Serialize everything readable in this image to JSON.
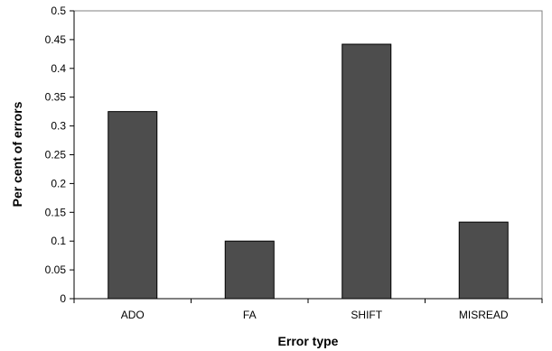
{
  "chart_data": {
    "type": "bar",
    "title": "",
    "xlabel": "Error type",
    "ylabel": "Per cent of errors",
    "categories": [
      "ADO",
      "FA",
      "SHIFT",
      "MISREAD"
    ],
    "values": [
      0.325,
      0.1,
      0.442,
      0.133
    ],
    "ylim": [
      0,
      0.5
    ],
    "yticks": [
      "0",
      "0.05",
      "0.1",
      "0.15",
      "0.2",
      "0.25",
      "0.3",
      "0.35",
      "0.4",
      "0.45",
      "0.5"
    ],
    "grid": false,
    "legend": "none",
    "colors": {
      "bar": "#4d4d4d",
      "bar_edge": "#000000",
      "axis": "#000000"
    }
  }
}
